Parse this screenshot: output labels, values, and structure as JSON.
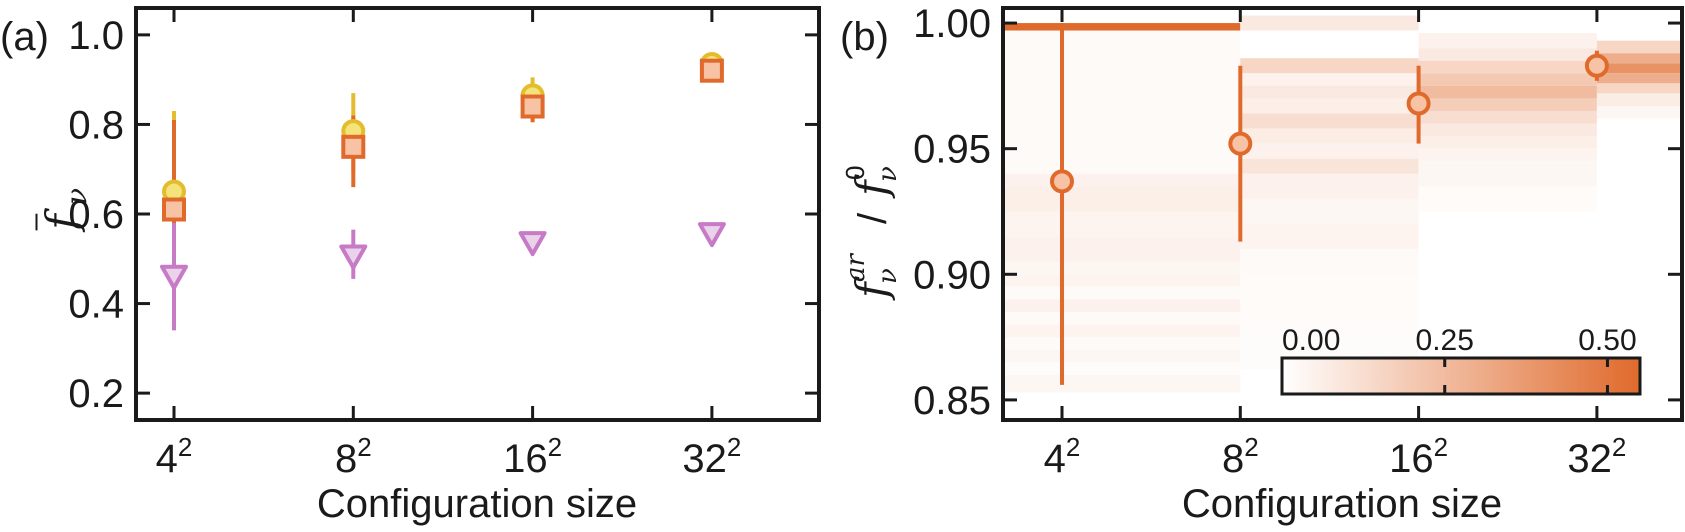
{
  "colors": {
    "yellow": "#e3bd2e",
    "yellow_fill": "#f4e27a",
    "orange": "#e06a2c",
    "orange_fill": "#f7c3a4",
    "purple": "#c77bc7",
    "purple_fill": "#ead2ea",
    "axis": "#1a1a1a"
  },
  "chart_data": [
    {
      "panel_label": "(a)",
      "type": "scatter",
      "xlabel": "Configuration size",
      "ylabel_symbol": "f",
      "ylabel_sub": "ν",
      "ylabel_bar": "–",
      "categories": [
        "4",
        "8",
        "16",
        "32"
      ],
      "category_exp": "2",
      "ylim": [
        0.14,
        1.06
      ],
      "yticks": [
        "0.2",
        "0.4",
        "0.6",
        "0.8",
        "1.0"
      ],
      "series": [
        {
          "marker": "circle",
          "color": "yellow",
          "values": [
            0.65,
            0.785,
            0.865,
            0.935
          ],
          "err_low": [
            0.08,
            0.09,
            0.06,
            0.015
          ],
          "err_high": [
            0.18,
            0.085,
            0.04,
            0.015
          ]
        },
        {
          "marker": "square",
          "color": "orange",
          "values": [
            0.61,
            0.75,
            0.84,
            0.92
          ],
          "err_low": [
            0.07,
            0.09,
            0.035,
            0.015
          ],
          "err_high": [
            0.2,
            0.07,
            0.04,
            0.015
          ]
        },
        {
          "marker": "triangle-down",
          "color": "purple",
          "values": [
            0.46,
            0.505,
            0.535,
            0.555
          ],
          "err_low": [
            0.12,
            0.05,
            0.015,
            0.01
          ],
          "err_high": [
            0.12,
            0.06,
            0.015,
            0.01
          ]
        }
      ]
    },
    {
      "panel_label": "(b)",
      "type": "heatmap",
      "xlabel": "Configuration size",
      "ylabel_num": "ar",
      "ylabel_den": "0",
      "ylabel_symbol": "f",
      "ylabel_sub": "ν",
      "ylabel_sep": "/",
      "categories": [
        "4",
        "8",
        "16",
        "32"
      ],
      "category_exp": "2",
      "ylim": [
        0.842,
        1.006
      ],
      "yticks": [
        "0.85",
        "0.90",
        "0.95",
        "1.00"
      ],
      "points": {
        "values": [
          0.937,
          0.952,
          0.968,
          0.983
        ],
        "err_low": [
          0.081,
          0.039,
          0.016,
          0.006
        ],
        "err_high": [
          0.063,
          0.031,
          0.015,
          0.006
        ]
      },
      "columns": [
        {
          "x_range": [
            0,
            1.5
          ],
          "bins": [
            [
              1.0,
              0.997,
              0.55
            ],
            [
              0.997,
              0.94,
              0.02
            ],
            [
              0.94,
              0.935,
              0.05
            ],
            [
              0.935,
              0.925,
              0.06
            ],
            [
              0.925,
              0.915,
              0.04
            ],
            [
              0.915,
              0.905,
              0.05
            ],
            [
              0.905,
              0.9,
              0.03
            ],
            [
              0.9,
              0.895,
              0.04
            ],
            [
              0.895,
              0.89,
              0.02
            ],
            [
              0.89,
              0.885,
              0.05
            ],
            [
              0.885,
              0.88,
              0.02
            ],
            [
              0.88,
              0.875,
              0.04
            ],
            [
              0.875,
              0.87,
              0.02
            ],
            [
              0.87,
              0.865,
              0.03
            ],
            [
              0.865,
              0.86,
              0.01
            ],
            [
              0.86,
              0.853,
              0.03
            ]
          ]
        },
        {
          "x_range": [
            1.5,
            2.5
          ],
          "bins": [
            [
              1.003,
              0.997,
              0.08
            ],
            [
              0.997,
              0.986,
              0.0
            ],
            [
              0.986,
              0.98,
              0.15
            ],
            [
              0.98,
              0.975,
              0.05
            ],
            [
              0.975,
              0.97,
              0.08
            ],
            [
              0.97,
              0.964,
              0.06
            ],
            [
              0.964,
              0.958,
              0.12
            ],
            [
              0.958,
              0.952,
              0.07
            ],
            [
              0.952,
              0.946,
              0.05
            ],
            [
              0.946,
              0.94,
              0.1
            ],
            [
              0.94,
              0.93,
              0.05
            ],
            [
              0.93,
              0.92,
              0.03
            ],
            [
              0.92,
              0.91,
              0.04
            ],
            [
              0.91,
              0.9,
              0.02
            ],
            [
              0.9,
              0.88,
              0.015
            ],
            [
              0.88,
              0.862,
              0.01
            ]
          ]
        },
        {
          "x_range": [
            2.5,
            3.5
          ],
          "bins": [
            [
              0.996,
              0.99,
              0.05
            ],
            [
              0.99,
              0.985,
              0.08
            ],
            [
              0.985,
              0.98,
              0.15
            ],
            [
              0.98,
              0.975,
              0.2
            ],
            [
              0.975,
              0.97,
              0.25
            ],
            [
              0.97,
              0.965,
              0.18
            ],
            [
              0.965,
              0.96,
              0.12
            ],
            [
              0.96,
              0.955,
              0.08
            ],
            [
              0.955,
              0.95,
              0.06
            ],
            [
              0.95,
              0.945,
              0.04
            ],
            [
              0.945,
              0.935,
              0.03
            ],
            [
              0.935,
              0.925,
              0.015
            ]
          ]
        },
        {
          "x_range": [
            3.5,
            4.5
          ],
          "bins": [
            [
              0.993,
              0.988,
              0.15
            ],
            [
              0.988,
              0.984,
              0.3
            ],
            [
              0.984,
              0.98,
              0.4
            ],
            [
              0.98,
              0.976,
              0.3
            ],
            [
              0.976,
              0.972,
              0.15
            ],
            [
              0.972,
              0.967,
              0.07
            ],
            [
              0.967,
              0.962,
              0.03
            ]
          ]
        }
      ],
      "colorbar": {
        "ticks": [
          "0.00",
          "0.25",
          "0.50"
        ],
        "range": [
          0,
          0.55
        ]
      }
    }
  ]
}
